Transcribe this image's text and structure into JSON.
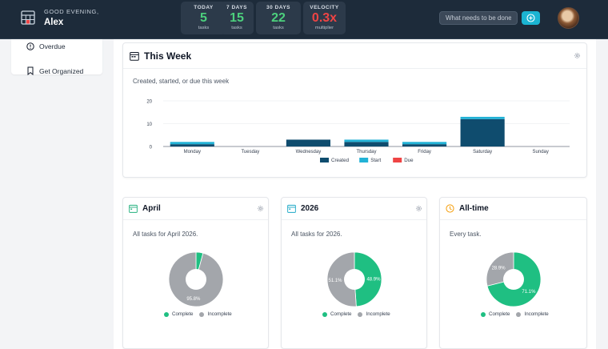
{
  "header": {
    "greeting": "GOOD EVENING,",
    "user_name": "Alex",
    "stats": [
      {
        "label": "TODAY",
        "value": "5",
        "unit": "tasks",
        "color": "#4cd07d"
      },
      {
        "label": "7 DAYS",
        "value": "15",
        "unit": "tasks",
        "color": "#4cd07d"
      },
      {
        "label": "30 DAYS",
        "value": "22",
        "unit": "tasks",
        "color": "#4cd07d"
      },
      {
        "label": "VELOCITY",
        "value": "0.3x",
        "unit": "multiplier",
        "color": "#ef4444"
      }
    ],
    "search_placeholder": "What needs to be done?",
    "icons": {
      "logo": "calendar-grid-icon",
      "add": "plus-circle-icon",
      "avatar": "user-avatar"
    }
  },
  "sidebar": {
    "items": [
      {
        "label": "Overdue",
        "icon": "alert-circle-icon"
      },
      {
        "label": "Get Organized",
        "icon": "bookmark-icon"
      }
    ]
  },
  "week_card": {
    "title": "This Week",
    "subtitle": "Created, started, or due this week",
    "icon": "calendar-icon",
    "settings_icon": "gear-icon"
  },
  "month_card": {
    "title": "April",
    "subtitle": "All tasks for April 2026.",
    "icon": "calendar-icon",
    "settings_icon": "gear-icon",
    "icon_color": "#22b07d"
  },
  "year_card": {
    "title": "2026",
    "subtitle": "All tasks for 2026.",
    "icon": "calendar-icon",
    "settings_icon": "gear-icon",
    "icon_color": "#1ba8c6"
  },
  "alltime_card": {
    "title": "All-time",
    "subtitle": "Every task.",
    "icon": "clock-icon",
    "icon_color": "#f59e0b"
  },
  "colors": {
    "created": "#0f4c6e",
    "start": "#22b2d6",
    "due": "#ef4444",
    "complete": "#1fbf82",
    "incomplete": "#a3a6ab"
  },
  "chart_data": [
    {
      "type": "bar",
      "stacked": true,
      "categories": [
        "Monday",
        "Tuesday",
        "Wednesday",
        "Thursday",
        "Friday",
        "Saturday",
        "Sunday"
      ],
      "series": [
        {
          "name": "Created",
          "values": [
            1,
            0,
            3,
            2,
            1,
            12,
            0
          ]
        },
        {
          "name": "Start",
          "values": [
            1,
            0,
            0,
            1,
            1,
            1,
            0
          ]
        },
        {
          "name": "Due",
          "values": [
            0,
            0,
            0,
            0,
            0,
            0,
            0
          ]
        }
      ],
      "ylim": [
        0,
        20
      ],
      "yticks": [
        0,
        10,
        20
      ],
      "grid": true,
      "legend": "bottom"
    },
    {
      "type": "pie",
      "labels": [
        "Complete",
        "Incomplete"
      ],
      "values": [
        4.2,
        95.8
      ],
      "value_labels": [
        "",
        "95.8%"
      ],
      "legend": "bottom"
    },
    {
      "type": "pie",
      "labels": [
        "Complete",
        "Incomplete"
      ],
      "values": [
        48.9,
        51.1
      ],
      "value_labels": [
        "48.9%",
        "51.1%"
      ],
      "legend": "bottom"
    },
    {
      "type": "pie",
      "labels": [
        "Complete",
        "Incomplete"
      ],
      "values": [
        71.1,
        28.9
      ],
      "value_labels": [
        "71.1%",
        "28.9%"
      ],
      "legend": "bottom"
    }
  ]
}
